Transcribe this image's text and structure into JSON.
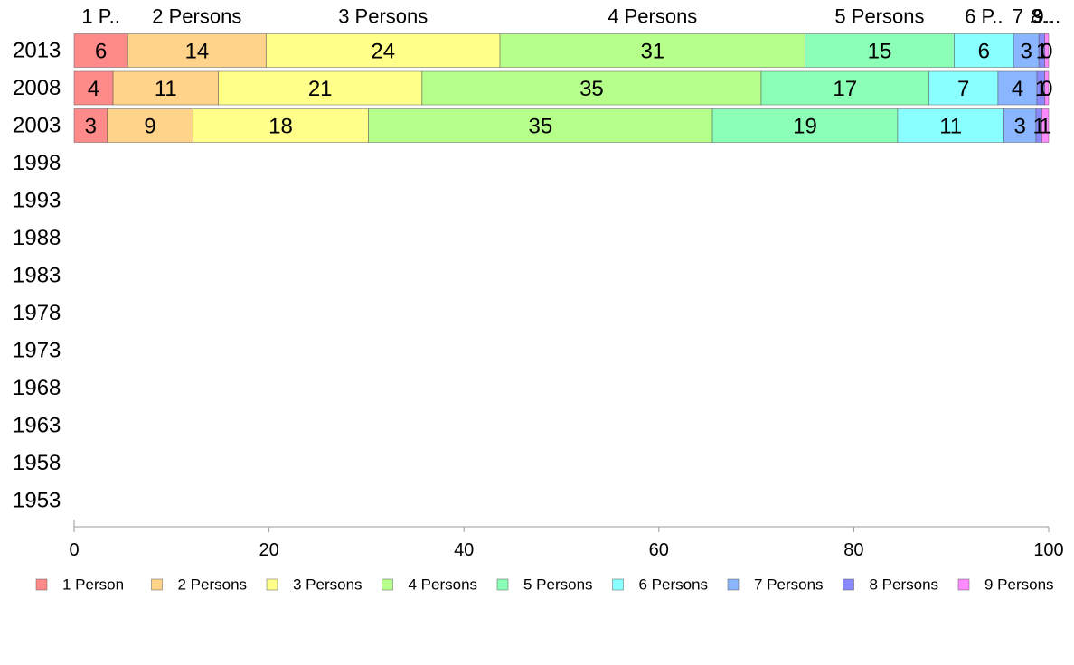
{
  "chart_data": {
    "type": "bar",
    "orientation": "horizontal",
    "stacked": "percent",
    "categories": [
      "2013",
      "2008",
      "2003",
      "1998",
      "1993",
      "1988",
      "1983",
      "1978",
      "1973",
      "1968",
      "1963",
      "1958",
      "1953"
    ],
    "series": [
      {
        "name": "1 Person",
        "color": "#ff8a8a",
        "values": [
          5.5,
          4.0,
          3.4,
          null,
          null,
          null,
          null,
          null,
          null,
          null,
          null,
          null,
          null
        ]
      },
      {
        "name": "2 Persons",
        "color": "#ffd38a",
        "values": [
          14.2,
          10.8,
          8.8,
          null,
          null,
          null,
          null,
          null,
          null,
          null,
          null,
          null,
          null
        ]
      },
      {
        "name": "3 Persons",
        "color": "#ffff8a",
        "values": [
          24.0,
          20.9,
          18.0,
          null,
          null,
          null,
          null,
          null,
          null,
          null,
          null,
          null,
          null
        ]
      },
      {
        "name": "4 Persons",
        "color": "#b5ff8a",
        "values": [
          31.3,
          34.8,
          35.3,
          null,
          null,
          null,
          null,
          null,
          null,
          null,
          null,
          null,
          null
        ]
      },
      {
        "name": "5 Persons",
        "color": "#8affb5",
        "values": [
          15.3,
          17.2,
          19.0,
          null,
          null,
          null,
          null,
          null,
          null,
          null,
          null,
          null,
          null
        ]
      },
      {
        "name": "6 Persons",
        "color": "#8affff",
        "values": [
          6.1,
          7.1,
          10.9,
          null,
          null,
          null,
          null,
          null,
          null,
          null,
          null,
          null,
          null
        ]
      },
      {
        "name": "7 Persons",
        "color": "#8ab5ff",
        "values": [
          2.6,
          4.0,
          3.3,
          null,
          null,
          null,
          null,
          null,
          null,
          null,
          null,
          null,
          null
        ]
      },
      {
        "name": "8 Persons",
        "color": "#8a8aff",
        "values": [
          0.6,
          0.8,
          0.6,
          null,
          null,
          null,
          null,
          null,
          null,
          null,
          null,
          null,
          null
        ]
      },
      {
        "name": "9 Persons",
        "color": "#ff8aff",
        "values": [
          0.4,
          0.4,
          0.7,
          null,
          null,
          null,
          null,
          null,
          null,
          null,
          null,
          null,
          null
        ]
      }
    ],
    "top_labels": [
      "1 P..",
      "2 Persons",
      "3 Persons",
      "4 Persons",
      "5 Persons",
      "6 P..",
      "7 ..",
      "8..",
      "9..."
    ],
    "xlim": [
      0,
      100
    ],
    "xticks": [
      0,
      20,
      40,
      60,
      80,
      100
    ],
    "title": "",
    "xlabel": "",
    "ylabel": "",
    "grid": false,
    "legend_position": "bottom"
  }
}
